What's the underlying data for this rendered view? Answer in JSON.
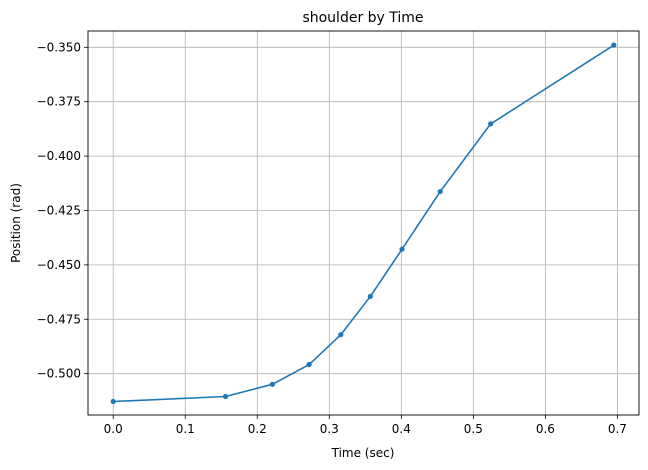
{
  "chart_data": {
    "type": "line",
    "title": "shoulder by Time",
    "xlabel": "Time (sec)",
    "ylabel": "Position (rad)",
    "xlim": [
      -0.035,
      0.73
    ],
    "ylim": [
      -0.519,
      -0.3425
    ],
    "xticks": [
      0.0,
      0.1,
      0.2,
      0.3,
      0.4,
      0.5,
      0.6,
      0.7
    ],
    "xtick_labels": [
      "0.0",
      "0.1",
      "0.2",
      "0.3",
      "0.4",
      "0.5",
      "0.6",
      "0.7"
    ],
    "yticks": [
      -0.35,
      -0.375,
      -0.4,
      -0.425,
      -0.45,
      -0.475,
      -0.5
    ],
    "ytick_labels": [
      "−0.350",
      "−0.375",
      "−0.400",
      "−0.425",
      "−0.450",
      "−0.475",
      "−0.500"
    ],
    "grid": true,
    "series": [
      {
        "color": "#1f77b4",
        "marker": "circle",
        "x": [
          0.0,
          0.156,
          0.221,
          0.272,
          0.316,
          0.357,
          0.401,
          0.454,
          0.524,
          0.695
        ],
        "y": [
          -0.5128,
          -0.5105,
          -0.5049,
          -0.4958,
          -0.4821,
          -0.4645,
          -0.4428,
          -0.4163,
          -0.3852,
          -0.349
        ]
      }
    ]
  }
}
